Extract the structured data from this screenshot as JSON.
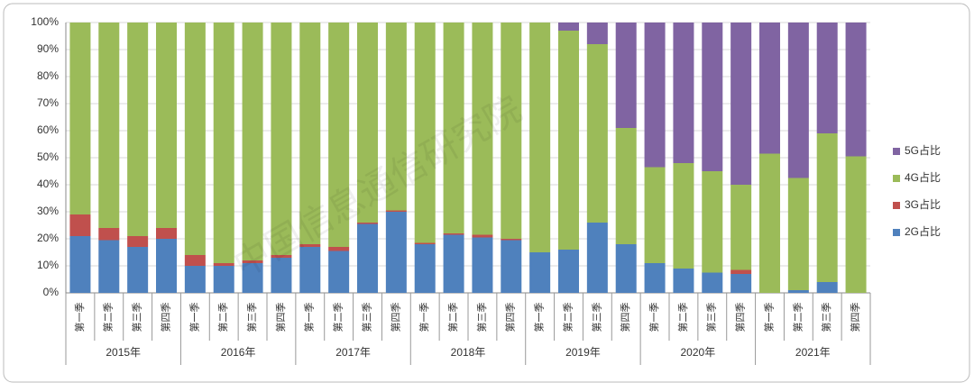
{
  "chart_data": {
    "type": "stacked-bar",
    "categories": [
      "第一季",
      "第二季",
      "第三季",
      "第四季",
      "第一季",
      "第二季",
      "第三季",
      "第四季",
      "第一季",
      "第二季",
      "第三季",
      "第四季",
      "第一季",
      "第二季",
      "第三季",
      "第四季",
      "第一季",
      "第二季",
      "第三季",
      "第四季",
      "第一季",
      "第二季",
      "第三季",
      "第四季",
      "第一季",
      "第二季",
      "第三季",
      "第四季"
    ],
    "groups": [
      "2015年",
      "2016年",
      "2017年",
      "2018年",
      "2019年",
      "2020年",
      "2021年"
    ],
    "series": [
      {
        "name": "2G占比",
        "color": "#4f81bd",
        "values": [
          21,
          19.5,
          17,
          20,
          10,
          10,
          11,
          13,
          17,
          15.5,
          25.5,
          30,
          18,
          21.5,
          20.5,
          19.5,
          15,
          16,
          26,
          18,
          11,
          9,
          7.5,
          7,
          0,
          1,
          4,
          0
        ]
      },
      {
        "name": "3G占比",
        "color": "#c0504d",
        "values": [
          8,
          4.5,
          4,
          4,
          4,
          1,
          1,
          1,
          1,
          1.5,
          0.5,
          0.5,
          0.5,
          0.5,
          1,
          0.5,
          0,
          0,
          0,
          0,
          0,
          0,
          0,
          1.5,
          0,
          0,
          0,
          0
        ]
      },
      {
        "name": "4G占比",
        "color": "#9bbb59",
        "values": [
          71,
          76,
          79,
          76,
          86,
          89,
          88,
          86,
          82,
          83,
          74,
          69.5,
          81.5,
          78,
          78.5,
          80,
          85,
          81,
          66,
          43,
          35.5,
          39,
          37.5,
          31.5,
          51.5,
          41.5,
          55,
          50.5
        ]
      },
      {
        "name": "5G占比",
        "color": "#8064a2",
        "values": [
          0,
          0,
          0,
          0,
          0,
          0,
          0,
          0,
          0,
          0,
          0,
          0,
          0,
          0,
          0,
          0,
          0,
          3,
          8,
          39,
          53.5,
          52,
          55,
          60,
          48.5,
          57.5,
          41,
          49.5
        ]
      }
    ],
    "ylim": [
      0,
      100
    ],
    "yticks": [
      {
        "value": 0,
        "label": "0%"
      },
      {
        "value": 10,
        "label": "10%"
      },
      {
        "value": 20,
        "label": "20%"
      },
      {
        "value": 30,
        "label": "30%"
      },
      {
        "value": 40,
        "label": "40%"
      },
      {
        "value": 50,
        "label": "50%"
      },
      {
        "value": 60,
        "label": "60%"
      },
      {
        "value": 70,
        "label": "70%"
      },
      {
        "value": 80,
        "label": "80%"
      },
      {
        "value": 90,
        "label": "90%"
      },
      {
        "value": 100,
        "label": "100%"
      }
    ],
    "grid": true,
    "legend": "right",
    "watermark": "中国信息通信研究院"
  }
}
